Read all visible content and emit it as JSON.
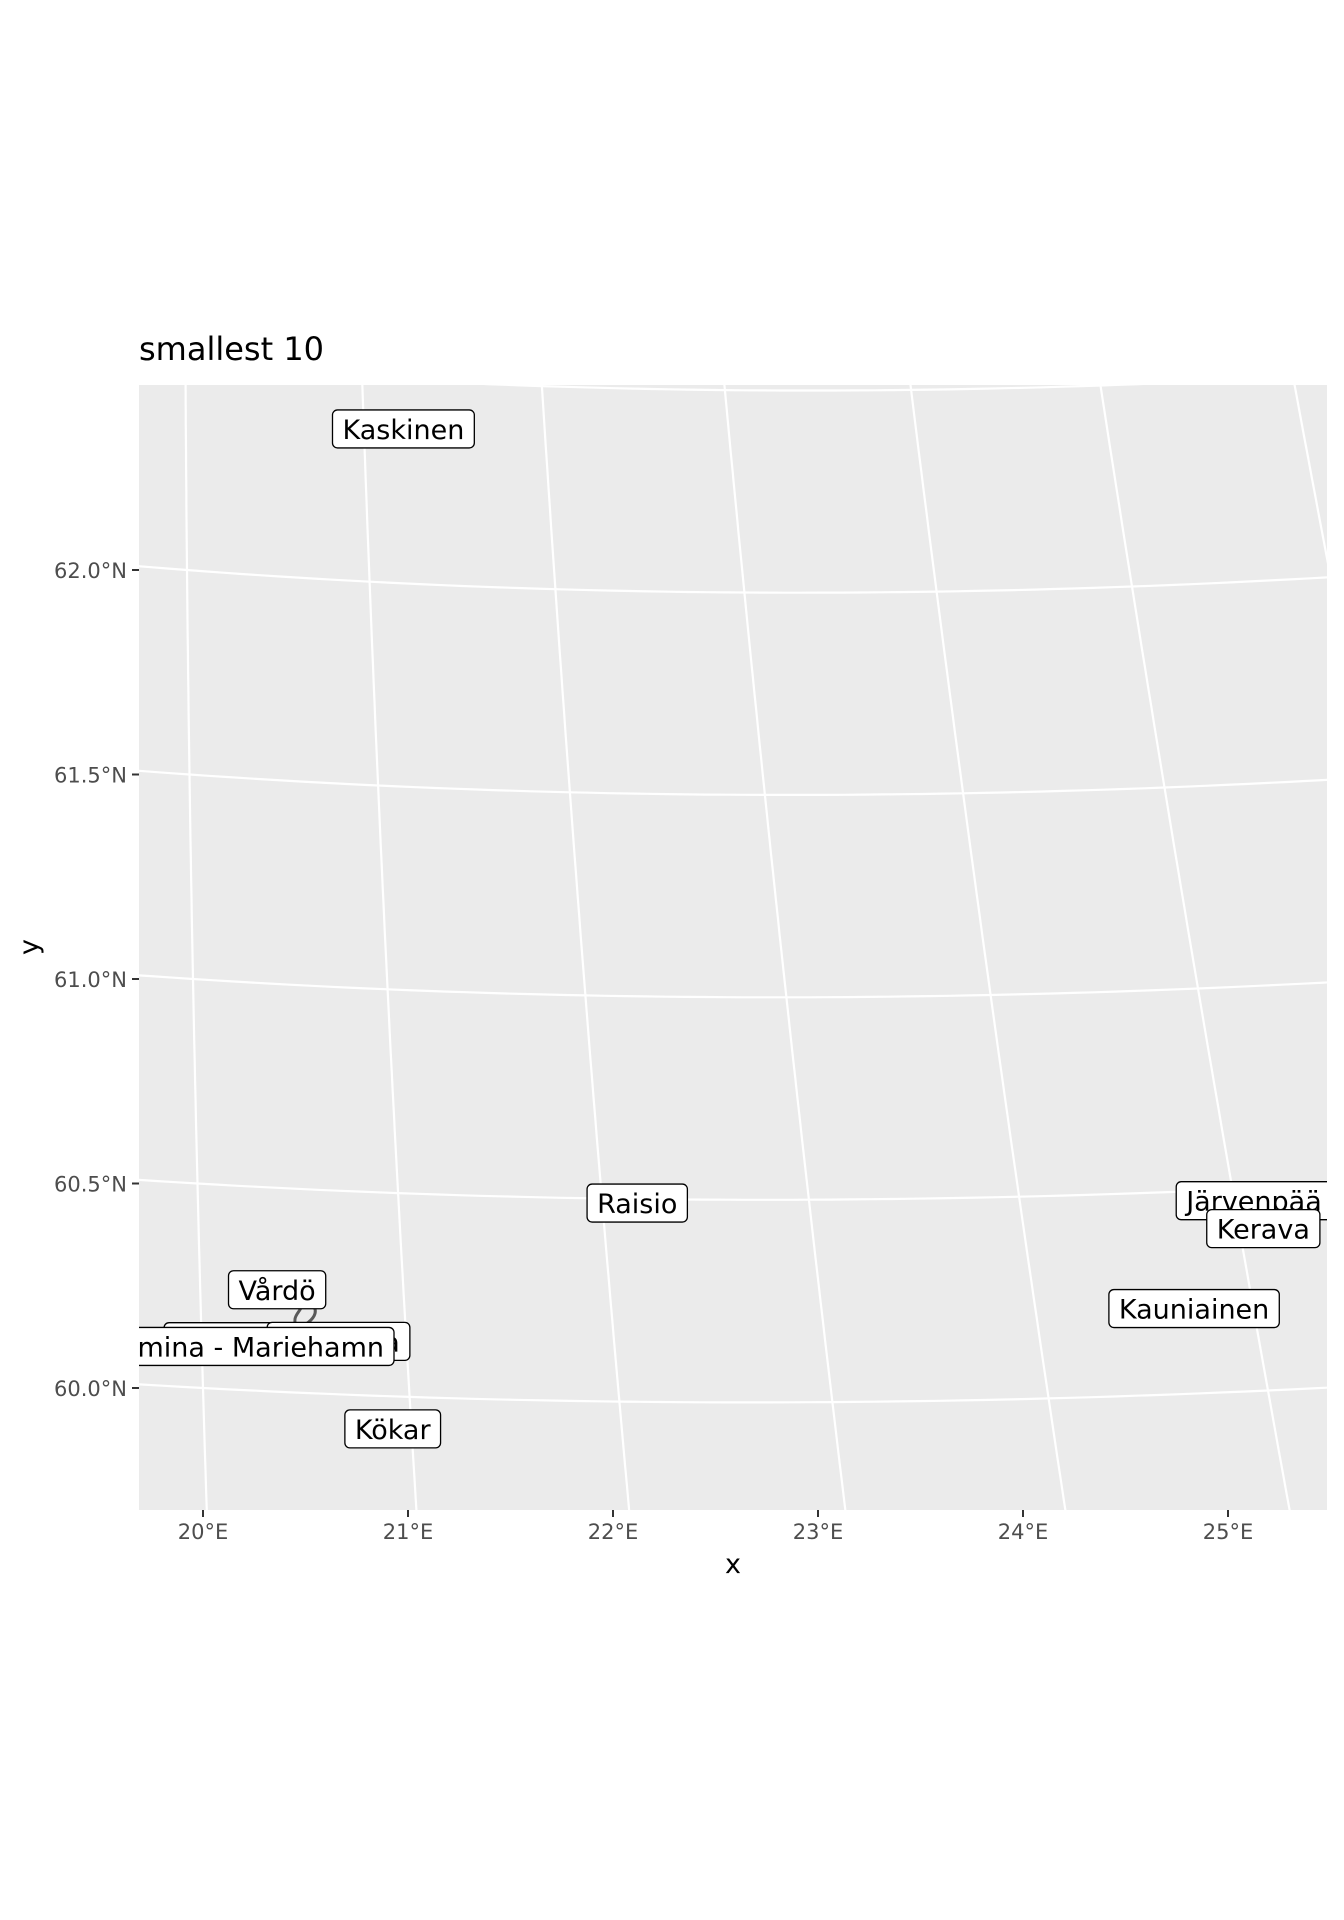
{
  "title": "smallest 10",
  "axes": {
    "xlabel": "x",
    "ylabel": "y",
    "x_ticks": [
      "20°E",
      "21°E",
      "22°E",
      "23°E",
      "24°E",
      "25°E"
    ],
    "y_ticks": [
      "60.0°N",
      "60.5°N",
      "61.0°N",
      "61.5°N",
      "62.0°N"
    ]
  },
  "colors": {
    "panel": "#ebebeb",
    "grid": "#ffffff",
    "text": "#000000",
    "tick_text": "#4d4d4d",
    "outline": "#595959"
  },
  "chart_data": {
    "type": "map",
    "title": "smallest 10",
    "xlabel": "x",
    "ylabel": "y",
    "xlim": [
      19.7,
      25.5
    ],
    "ylim": [
      59.7,
      62.45
    ],
    "grid": true,
    "labels": [
      {
        "name": "Kaskinen",
        "lon": 21.22,
        "lat": 62.38
      },
      {
        "name": "Raisio",
        "lon": 22.17,
        "lat": 60.49
      },
      {
        "name": "Vårdö",
        "lon": 20.38,
        "lat": 60.25
      },
      {
        "name": "Maarianhamina - Mariehamn",
        "lon": 19.94,
        "lat": 60.1
      },
      {
        "name": "Lumparland",
        "lon": 20.26,
        "lat": 60.12
      },
      {
        "name": "Sottunga",
        "lon": 20.67,
        "lat": 60.13
      },
      {
        "name": "Kökar",
        "lon": 20.91,
        "lat": 59.92
      },
      {
        "name": "Järvenpää",
        "lon": 25.09,
        "lat": 60.47
      },
      {
        "name": "Kerava",
        "lon": 25.11,
        "lat": 60.4
      },
      {
        "name": "Kauniainen",
        "lon": 24.73,
        "lat": 60.21
      }
    ]
  }
}
